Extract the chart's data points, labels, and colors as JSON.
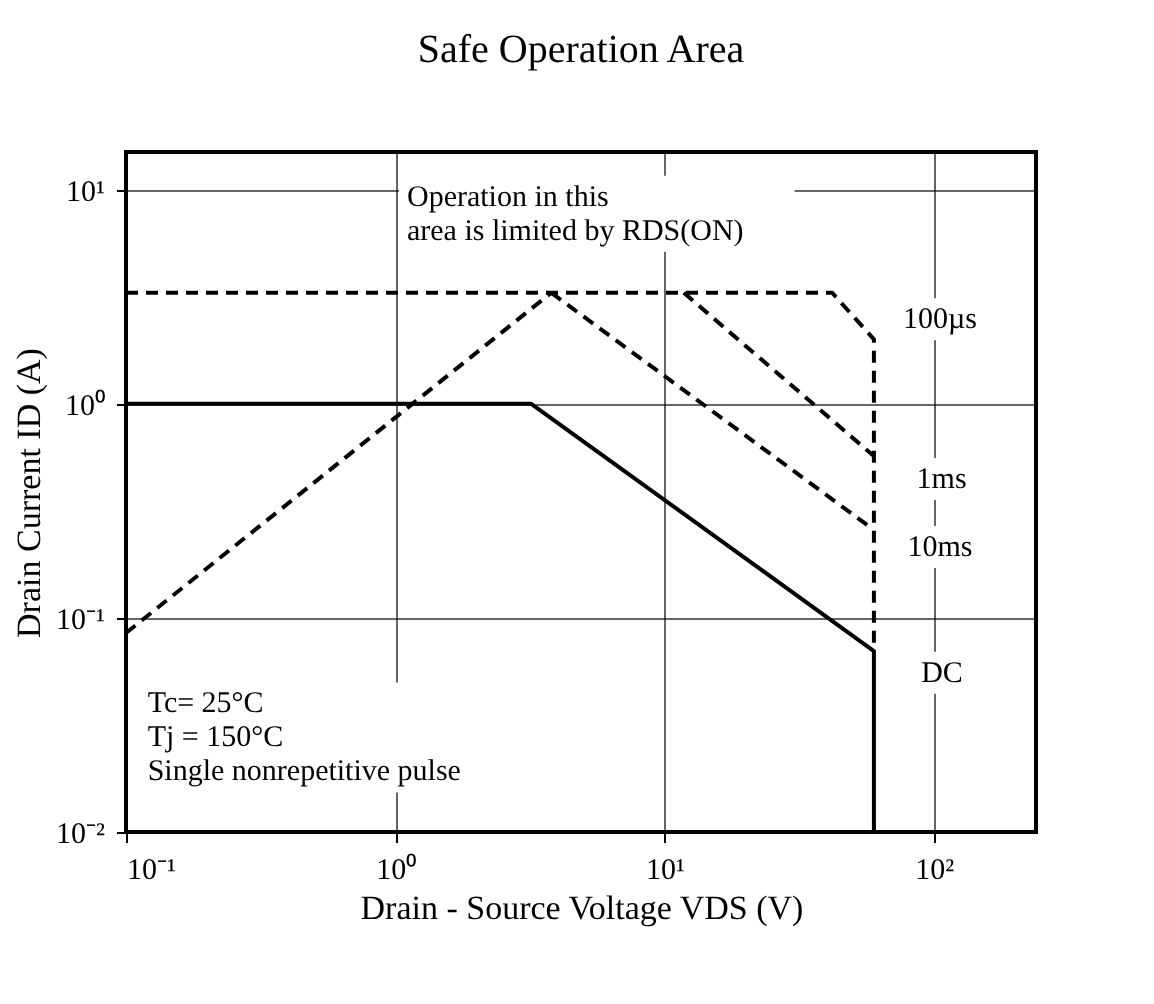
{
  "chart_data": {
    "type": "line",
    "title": "Safe Operation Area",
    "xlabel": "Drain - Source Voltage VDS (V)",
    "ylabel": "Drain Current ID (A)",
    "log": "xy",
    "xlim": [
      0.1,
      240
    ],
    "ylim": [
      0.01,
      15
    ],
    "xticks": [
      {
        "value": 0.1,
        "label": "10⁻¹"
      },
      {
        "value": 1,
        "label": "10⁰"
      },
      {
        "value": 10,
        "label": "10¹"
      },
      {
        "value": 100,
        "label": "10²"
      }
    ],
    "yticks": [
      {
        "value": 0.01,
        "label": "10⁻²"
      },
      {
        "value": 0.1,
        "label": "10⁻¹"
      },
      {
        "value": 1,
        "label": "10⁰"
      },
      {
        "value": 10,
        "label": "10¹"
      }
    ],
    "grid": true,
    "legend": false,
    "marker": "none",
    "series": [
      {
        "color": "#000000",
        "line_style": "dashed",
        "x": [
          0.1,
          3.8
        ],
        "values": [
          0.085,
          3.3
        ]
      },
      {
        "color": "#000000",
        "line_style": "dashed",
        "x": [
          0.1,
          42,
          60,
          60
        ],
        "values": [
          3.3,
          3.3,
          2.0,
          0.07
        ]
      },
      {
        "color": "#000000",
        "line_style": "dashed",
        "x": [
          11.8,
          60
        ],
        "values": [
          3.3,
          0.57
        ]
      },
      {
        "color": "#000000",
        "line_style": "dashed",
        "x": [
          3.8,
          57
        ],
        "values": [
          3.3,
          0.27
        ]
      },
      {
        "color": "#000000",
        "line_style": "solid",
        "x": [
          0.1,
          3.2,
          60,
          60
        ],
        "values": [
          1,
          1,
          0.07,
          0.01
        ]
      }
    ],
    "annotations": [
      "100µs",
      "1ms",
      "10ms",
      "DC",
      "Operation in this\narea is limited by RDS(ON)",
      "Tc= 25°C\nTj = 150°C\nSingle nonrepetitive pulse"
    ]
  }
}
